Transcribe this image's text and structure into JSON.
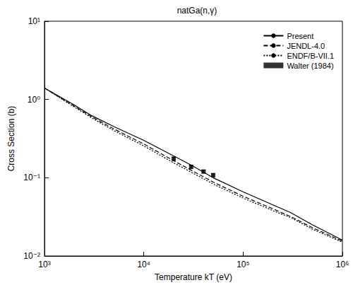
{
  "chart_data": {
    "type": "line",
    "title": "natGa(n,γ)",
    "x_label": "Temperature kT (eV)",
    "y_label": "Cross Section (b)",
    "log": true,
    "grid": false,
    "legend": "top-right",
    "xlim": [
      1000,
      1000000
    ],
    "ylim": [
      0.01,
      10
    ],
    "xticks": [
      {
        "value": 1000,
        "label": "10³"
      },
      {
        "value": 10000,
        "label": "10⁴"
      },
      {
        "value": 100000,
        "label": "10⁵"
      },
      {
        "value": 1000000,
        "label": "10⁶"
      }
    ],
    "yticks": [
      {
        "value": 0.01,
        "label": "10⁻²"
      },
      {
        "value": 0.1,
        "label": "10⁻¹"
      },
      {
        "value": 1,
        "label": "10⁰"
      },
      {
        "value": 10,
        "label": "10¹"
      }
    ],
    "series": [
      {
        "name": "Present",
        "type": "line",
        "color": "#000000",
        "line_style": "solid",
        "x": [
          1000,
          2000,
          3000,
          5000,
          10000,
          20000,
          30000,
          50000,
          100000,
          200000,
          300000,
          500000,
          1000000
        ],
        "values": [
          1.4,
          0.85,
          0.62,
          0.45,
          0.3,
          0.19,
          0.145,
          0.1,
          0.066,
          0.045,
          0.036,
          0.025,
          0.016
        ]
      },
      {
        "name": "JENDL-4.0",
        "type": "line",
        "color": "#000000",
        "line_style": "dashed",
        "x": [
          1000,
          2000,
          3000,
          5000,
          10000,
          20000,
          30000,
          50000,
          100000,
          200000,
          300000,
          500000,
          1000000
        ],
        "values": [
          1.4,
          0.82,
          0.6,
          0.42,
          0.27,
          0.165,
          0.125,
          0.088,
          0.058,
          0.04,
          0.032,
          0.023,
          0.0155
        ]
      },
      {
        "name": "ENDF/B-VII.1",
        "type": "line",
        "color": "#000000",
        "line_style": "dotted",
        "x": [
          1000,
          2000,
          3000,
          5000,
          10000,
          20000,
          30000,
          50000,
          100000,
          200000,
          300000,
          500000,
          1000000
        ],
        "values": [
          1.4,
          0.8,
          0.58,
          0.4,
          0.255,
          0.155,
          0.118,
          0.083,
          0.055,
          0.038,
          0.031,
          0.022,
          0.015
        ]
      },
      {
        "name": "Walter (1984)",
        "type": "scatter",
        "color": "#000000",
        "marker": "square",
        "x": [
          20000,
          30000,
          40000,
          50000
        ],
        "values": [
          0.175,
          0.138,
          0.12,
          0.108
        ],
        "y_err": [
          0.008,
          0.006,
          0.005,
          0.005
        ]
      }
    ]
  }
}
